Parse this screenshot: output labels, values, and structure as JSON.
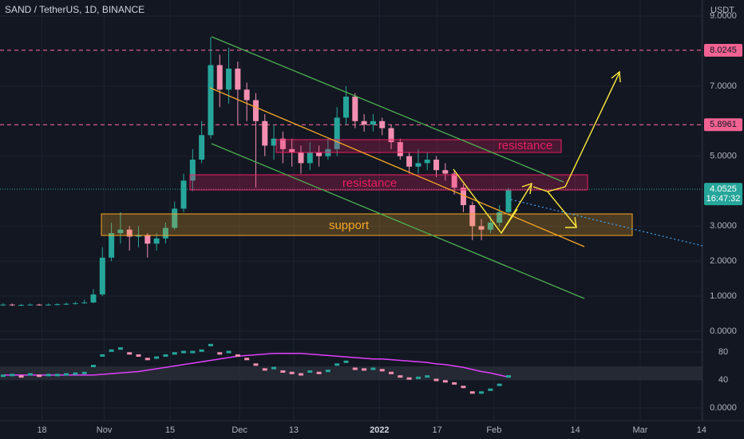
{
  "chart_data": [
    {
      "type": "candlestick",
      "title": "SAND / TetherUS, 1D, BINANCE",
      "unit": "USDT",
      "up_color": "#26a69a",
      "down_color": "#f48fb1",
      "open": [
        0.75,
        0.76,
        0.74,
        0.75,
        0.76,
        0.75,
        0.76,
        0.77,
        0.78,
        0.8,
        0.82,
        1.05,
        2.1,
        2.8,
        2.9,
        2.7,
        2.75,
        2.5,
        2.65,
        2.95,
        3.5,
        4.3,
        4.9,
        5.6,
        7.6,
        6.9,
        7.5,
        6.9,
        6.6,
        6.0,
        5.3,
        5.5,
        5.2,
        5.1,
        4.8,
        5.1,
        5.0,
        5.2,
        6.1,
        6.7,
        6.0,
        5.9,
        6.0,
        5.8,
        5.4,
        5.0,
        4.7,
        4.8,
        4.9,
        4.6,
        4.5,
        4.1,
        3.6,
        3.0,
        2.9,
        3.1,
        3.4
      ],
      "high": [
        0.8,
        0.79,
        0.78,
        0.79,
        0.78,
        0.79,
        0.8,
        0.82,
        0.84,
        0.9,
        1.2,
        2.4,
        3.1,
        3.4,
        3.0,
        3.0,
        2.8,
        2.8,
        3.1,
        3.7,
        4.5,
        5.2,
        6.0,
        8.4,
        7.9,
        8.1,
        7.7,
        7.1,
        6.8,
        6.2,
        5.9,
        5.7,
        5.5,
        5.3,
        5.4,
        5.3,
        5.5,
        6.4,
        7.0,
        6.8,
        6.2,
        6.2,
        6.1,
        5.9,
        5.5,
        5.1,
        5.2,
        5.1,
        5.0,
        4.8,
        4.6,
        4.2,
        3.7,
        3.2,
        3.3,
        3.6,
        4.1
      ],
      "low": [
        0.72,
        0.72,
        0.72,
        0.73,
        0.73,
        0.73,
        0.74,
        0.75,
        0.76,
        0.78,
        0.8,
        1.0,
        2.0,
        2.5,
        2.3,
        2.4,
        2.1,
        2.3,
        2.5,
        2.9,
        3.4,
        4.0,
        4.8,
        5.5,
        6.4,
        6.5,
        5.9,
        6.0,
        4.1,
        5.0,
        4.9,
        4.8,
        4.7,
        4.5,
        4.6,
        4.7,
        4.9,
        5.0,
        5.9,
        5.8,
        5.7,
        5.7,
        5.6,
        5.2,
        4.9,
        4.5,
        4.5,
        4.6,
        4.4,
        4.3,
        3.9,
        3.4,
        2.6,
        2.6,
        2.8,
        3.0,
        3.3
      ],
      "close": [
        0.76,
        0.74,
        0.75,
        0.76,
        0.75,
        0.76,
        0.77,
        0.78,
        0.8,
        0.82,
        1.05,
        2.1,
        2.8,
        2.9,
        2.7,
        2.75,
        2.5,
        2.65,
        2.95,
        3.5,
        4.3,
        4.9,
        5.6,
        7.6,
        6.9,
        7.5,
        6.9,
        6.6,
        6.0,
        5.3,
        5.5,
        5.2,
        5.1,
        4.8,
        5.1,
        5.0,
        5.2,
        6.1,
        6.7,
        6.0,
        5.9,
        6.0,
        5.8,
        5.4,
        5.0,
        4.7,
        4.8,
        4.9,
        4.6,
        4.5,
        4.1,
        3.6,
        3.0,
        2.9,
        3.1,
        3.4,
        4.05
      ],
      "xlim": [
        -0.35,
        77.5
      ],
      "xticks": [
        {
          "value": 4.3,
          "label": "18"
        },
        {
          "value": 11.2,
          "label": "Nov"
        },
        {
          "value": 18.5,
          "label": "15"
        },
        {
          "value": 26.2,
          "label": "Dec"
        },
        {
          "value": 32.2,
          "label": "13"
        },
        {
          "value": 41.7,
          "label": "2022"
        },
        {
          "value": 48.1,
          "label": "17"
        },
        {
          "value": 54.4,
          "label": "Feb"
        },
        {
          "value": 63.4,
          "label": "14"
        },
        {
          "value": 70.6,
          "label": "Mar"
        },
        {
          "value": 77.4,
          "label": "14"
        }
      ],
      "ylim": [
        -0.23,
        9.46
      ],
      "yticks": [
        {
          "value": 0,
          "label": "0.0000"
        },
        {
          "value": 1,
          "label": "1.0000"
        },
        {
          "value": 2,
          "label": "2.0000"
        },
        {
          "value": 3,
          "label": "3.0000"
        },
        {
          "value": 5,
          "label": "5.0000"
        },
        {
          "value": 7,
          "label": "7.0000"
        },
        {
          "value": 9,
          "label": "9.0000"
        }
      ],
      "price_lines": [
        {
          "value": 8.0245,
          "label": "8.0245",
          "color": "#f06292"
        },
        {
          "value": 5.8961,
          "label": "5.8961",
          "color": "#f06292"
        }
      ],
      "last_price": {
        "value": 4.0525,
        "label": "4.0525",
        "color": "#26a69a"
      },
      "countdown": "16:47:32",
      "annotations": [
        "support",
        "resistance",
        "resistance"
      ]
    },
    {
      "type": "line",
      "series": [
        {
          "color": "#26a69a",
          "down_color": "#f48fb1",
          "values": [
            46,
            47,
            45,
            48,
            46,
            47,
            47,
            48,
            49,
            50,
            60,
            75,
            82,
            85,
            78,
            75,
            70,
            72,
            75,
            78,
            80,
            80,
            82,
            90,
            78,
            80,
            75,
            70,
            62,
            55,
            57,
            52,
            50,
            48,
            52,
            50,
            53,
            62,
            66,
            56,
            55,
            56,
            54,
            50,
            45,
            42,
            43,
            45,
            40,
            38,
            35,
            30,
            22,
            22,
            26,
            33,
            45
          ]
        },
        {
          "color": "#e040fb",
          "values": [
            47,
            47,
            47,
            47,
            47,
            47,
            47,
            47,
            47,
            47,
            47,
            48,
            49,
            50,
            51,
            52,
            54,
            56,
            58,
            60,
            62,
            64,
            66,
            68,
            70,
            72,
            74,
            75,
            76,
            77,
            78,
            78,
            78,
            78,
            77,
            76,
            75,
            74,
            73,
            72,
            71,
            70,
            70,
            69,
            68,
            67,
            66,
            65,
            63,
            62,
            60,
            58,
            55,
            52,
            50,
            47,
            44
          ]
        }
      ],
      "ylim": [
        -18.3,
        94.9
      ],
      "yticks": [
        80,
        40,
        {
          "value": 0,
          "label": "0.0000"
        }
      ]
    }
  ]
}
